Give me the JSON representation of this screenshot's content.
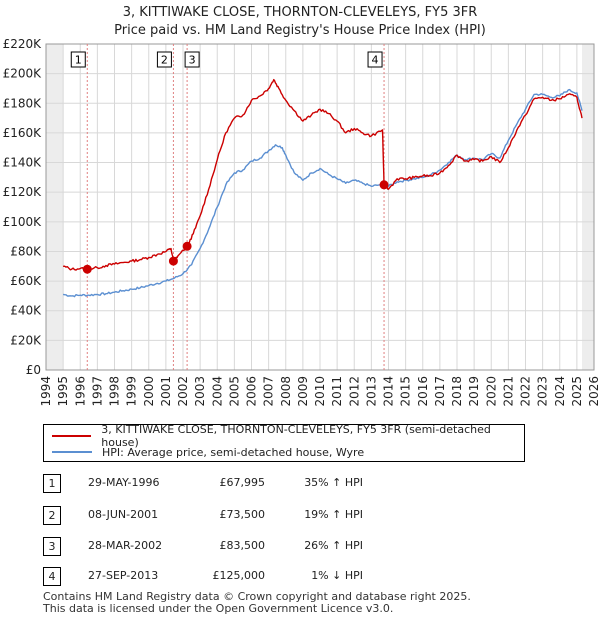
{
  "chart_data": {
    "type": "line",
    "title": "3, KITTIWAKE CLOSE, THORNTON-CLEVELEYS, FY5 3FR",
    "subtitle": "Price paid vs. HM Land Registry's House Price Index (HPI)",
    "xlim": [
      1994.0,
      2026.0
    ],
    "ylim": [
      0,
      220000
    ],
    "y_ticks": [
      {
        "value": 0,
        "label": "£0"
      },
      {
        "value": 20000,
        "label": "£20K"
      },
      {
        "value": 40000,
        "label": "£40K"
      },
      {
        "value": 60000,
        "label": "£60K"
      },
      {
        "value": 80000,
        "label": "£80K"
      },
      {
        "value": 100000,
        "label": "£100K"
      },
      {
        "value": 120000,
        "label": "£120K"
      },
      {
        "value": 140000,
        "label": "£140K"
      },
      {
        "value": 160000,
        "label": "£160K"
      },
      {
        "value": 180000,
        "label": "£180K"
      },
      {
        "value": 200000,
        "label": "£200K"
      },
      {
        "value": 220000,
        "label": "£220K"
      }
    ],
    "x_ticks": [
      "1994",
      "1995",
      "1996",
      "1997",
      "1998",
      "1999",
      "2000",
      "2001",
      "2002",
      "2003",
      "2004",
      "2005",
      "2006",
      "2007",
      "2008",
      "2009",
      "2010",
      "2011",
      "2012",
      "2013",
      "2014",
      "2015",
      "2016",
      "2017",
      "2018",
      "2019",
      "2020",
      "2021",
      "2022",
      "2023",
      "2024",
      "2025",
      "2026"
    ],
    "data_range": [
      1995.0,
      2025.3
    ],
    "series": [
      {
        "name": "3, KITTIWAKE CLOSE, THORNTON-CLEVELEYS, FY5 3FR (semi-detached house)",
        "color": "#cc0000",
        "points": [
          [
            1995.0,
            70000
          ],
          [
            1995.5,
            68000
          ],
          [
            1996.0,
            68500
          ],
          [
            1996.41,
            67995
          ],
          [
            1997.0,
            69000
          ],
          [
            1997.5,
            70500
          ],
          [
            1998.0,
            71500
          ],
          [
            1998.5,
            72500
          ],
          [
            1999.0,
            73500
          ],
          [
            1999.5,
            74500
          ],
          [
            2000.0,
            76000
          ],
          [
            2000.5,
            78000
          ],
          [
            2001.0,
            80000
          ],
          [
            2001.3,
            82000
          ],
          [
            2001.44,
            73500
          ],
          [
            2001.7,
            77000
          ],
          [
            2002.24,
            83500
          ],
          [
            2002.6,
            92000
          ],
          [
            2003.0,
            104000
          ],
          [
            2003.5,
            122000
          ],
          [
            2004.0,
            142000
          ],
          [
            2004.5,
            160000
          ],
          [
            2005.0,
            170000
          ],
          [
            2005.5,
            172000
          ],
          [
            2006.0,
            182000
          ],
          [
            2006.5,
            185000
          ],
          [
            2007.0,
            190000
          ],
          [
            2007.3,
            196000
          ],
          [
            2007.6,
            190000
          ],
          [
            2008.0,
            182000
          ],
          [
            2008.5,
            175000
          ],
          [
            2009.0,
            168000
          ],
          [
            2009.5,
            172000
          ],
          [
            2010.0,
            176000
          ],
          [
            2010.5,
            173000
          ],
          [
            2011.0,
            168000
          ],
          [
            2011.5,
            160000
          ],
          [
            2012.0,
            163000
          ],
          [
            2012.5,
            160000
          ],
          [
            2013.0,
            158000
          ],
          [
            2013.65,
            162000
          ],
          [
            2013.74,
            125000
          ],
          [
            2014.0,
            122000
          ],
          [
            2014.5,
            129000
          ],
          [
            2015.0,
            129000
          ],
          [
            2015.5,
            130000
          ],
          [
            2016.0,
            131000
          ],
          [
            2016.5,
            131000
          ],
          [
            2017.0,
            133000
          ],
          [
            2017.5,
            138000
          ],
          [
            2018.0,
            145000
          ],
          [
            2018.5,
            141000
          ],
          [
            2019.0,
            142000
          ],
          [
            2019.5,
            141000
          ],
          [
            2020.0,
            144000
          ],
          [
            2020.5,
            140000
          ],
          [
            2021.0,
            150000
          ],
          [
            2021.5,
            162000
          ],
          [
            2022.0,
            172000
          ],
          [
            2022.5,
            183000
          ],
          [
            2023.0,
            184000
          ],
          [
            2023.5,
            182000
          ],
          [
            2024.0,
            183000
          ],
          [
            2024.5,
            186000
          ],
          [
            2025.0,
            184000
          ],
          [
            2025.3,
            170000
          ]
        ]
      },
      {
        "name": "HPI: Average price, semi-detached house, Wyre",
        "color": "#5b8fd1",
        "points": [
          [
            1995.0,
            51000
          ],
          [
            1995.5,
            50000
          ],
          [
            1996.0,
            50500
          ],
          [
            1996.5,
            50500
          ],
          [
            1997.0,
            51000
          ],
          [
            1997.5,
            51500
          ],
          [
            1998.0,
            52500
          ],
          [
            1998.5,
            53500
          ],
          [
            1999.0,
            54500
          ],
          [
            1999.5,
            55500
          ],
          [
            2000.0,
            57000
          ],
          [
            2000.5,
            58500
          ],
          [
            2001.0,
            60000
          ],
          [
            2001.5,
            62000
          ],
          [
            2002.0,
            65000
          ],
          [
            2002.5,
            71000
          ],
          [
            2003.0,
            82000
          ],
          [
            2003.5,
            95000
          ],
          [
            2004.0,
            110000
          ],
          [
            2004.5,
            125000
          ],
          [
            2005.0,
            133000
          ],
          [
            2005.5,
            135000
          ],
          [
            2006.0,
            141000
          ],
          [
            2006.5,
            143000
          ],
          [
            2007.0,
            148000
          ],
          [
            2007.4,
            152000
          ],
          [
            2007.8,
            150000
          ],
          [
            2008.0,
            145000
          ],
          [
            2008.5,
            133000
          ],
          [
            2009.0,
            128000
          ],
          [
            2009.5,
            133000
          ],
          [
            2010.0,
            136000
          ],
          [
            2010.5,
            132000
          ],
          [
            2011.0,
            129000
          ],
          [
            2011.5,
            126000
          ],
          [
            2012.0,
            128000
          ],
          [
            2012.5,
            126000
          ],
          [
            2013.0,
            124000
          ],
          [
            2013.5,
            125000
          ],
          [
            2014.0,
            124000
          ],
          [
            2014.5,
            127000
          ],
          [
            2015.0,
            128000
          ],
          [
            2015.5,
            129000
          ],
          [
            2016.0,
            130000
          ],
          [
            2016.5,
            132000
          ],
          [
            2017.0,
            135000
          ],
          [
            2017.5,
            140000
          ],
          [
            2018.0,
            145000
          ],
          [
            2018.5,
            142000
          ],
          [
            2019.0,
            143000
          ],
          [
            2019.5,
            142000
          ],
          [
            2020.0,
            146000
          ],
          [
            2020.5,
            143000
          ],
          [
            2021.0,
            155000
          ],
          [
            2021.5,
            166000
          ],
          [
            2022.0,
            176000
          ],
          [
            2022.5,
            186000
          ],
          [
            2023.0,
            186000
          ],
          [
            2023.5,
            184000
          ],
          [
            2024.0,
            185000
          ],
          [
            2024.5,
            189000
          ],
          [
            2025.0,
            187000
          ],
          [
            2025.3,
            175000
          ]
        ]
      }
    ],
    "sales": [
      {
        "label": "1",
        "x": 1996.41,
        "price": 67995
      },
      {
        "label": "2",
        "x": 2001.44,
        "price": 73500
      },
      {
        "label": "3",
        "x": 2002.24,
        "price": 83500
      },
      {
        "label": "4",
        "x": 2013.74,
        "price": 125000
      }
    ]
  },
  "legend": {
    "property": "3, KITTIWAKE CLOSE, THORNTON-CLEVELEYS, FY5 3FR (semi-detached house)",
    "hpi": "HPI: Average price, semi-detached house, Wyre",
    "property_color": "#cc0000",
    "hpi_color": "#5b8fd1"
  },
  "transactions": [
    {
      "num": "1",
      "date": "29-MAY-1996",
      "price": "£67,995",
      "hpi": "35% ↑ HPI"
    },
    {
      "num": "2",
      "date": "08-JUN-2001",
      "price": "£73,500",
      "hpi": "19% ↑ HPI"
    },
    {
      "num": "3",
      "date": "28-MAR-2002",
      "price": "£83,500",
      "hpi": "26% ↑ HPI"
    },
    {
      "num": "4",
      "date": "27-SEP-2013",
      "price": "£125,000",
      "hpi": "1% ↓ HPI"
    }
  ],
  "footer": {
    "line1": "Contains HM Land Registry data © Crown copyright and database right 2025.",
    "line2": "This data is licensed under the Open Government Licence v3.0."
  }
}
